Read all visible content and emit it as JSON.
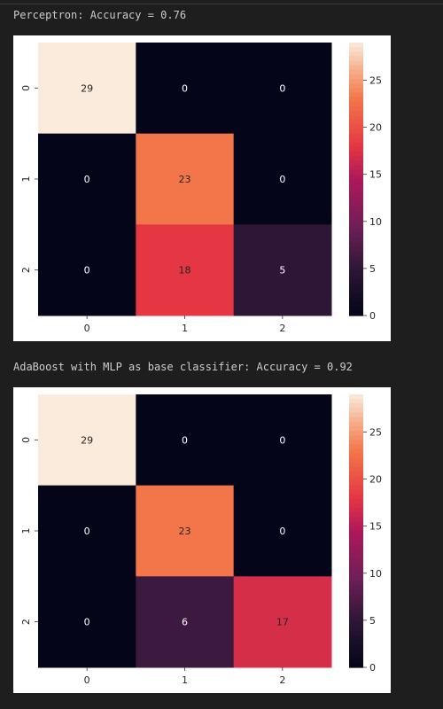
{
  "outputs": [
    {
      "caption": "Perceptron: Accuracy = 0.76",
      "chart_data": {
        "type": "heatmap",
        "x_labels": [
          "0",
          "1",
          "2"
        ],
        "y_labels": [
          "0",
          "1",
          "2"
        ],
        "values": [
          [
            29,
            0,
            0
          ],
          [
            0,
            23,
            0
          ],
          [
            0,
            18,
            5
          ]
        ],
        "colorbar": {
          "min": 0,
          "max": 29,
          "ticks": [
            0,
            5,
            10,
            15,
            20,
            25
          ]
        },
        "colormap": "rocket",
        "title": "",
        "xlabel": "",
        "ylabel": ""
      }
    },
    {
      "caption": "AdaBoost with MLP as base classifier: Accuracy = 0.92",
      "chart_data": {
        "type": "heatmap",
        "x_labels": [
          "0",
          "1",
          "2"
        ],
        "y_labels": [
          "0",
          "1",
          "2"
        ],
        "values": [
          [
            29,
            0,
            0
          ],
          [
            0,
            23,
            0
          ],
          [
            0,
            6,
            17
          ]
        ],
        "colorbar": {
          "min": 0,
          "max": 29,
          "ticks": [
            0,
            5,
            10,
            15,
            20,
            25
          ]
        },
        "colormap": "rocket",
        "title": "",
        "xlabel": "",
        "ylabel": ""
      }
    }
  ]
}
